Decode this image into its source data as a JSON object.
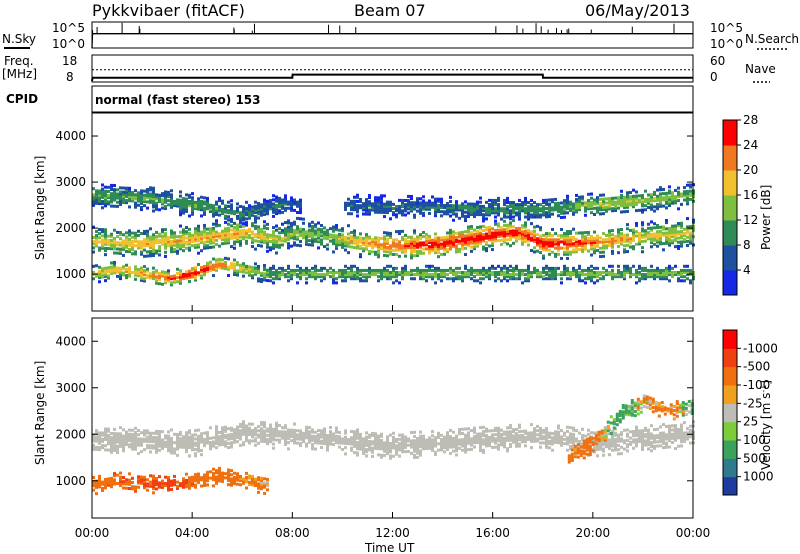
{
  "header": {
    "radar_title": "Pykkvibaer (fitACF)",
    "beam": "Beam 07",
    "date": "06/May/2013"
  },
  "info_panels": {
    "nsky_label": "N.Sky",
    "nsearch_label": "N.Search",
    "freq_label": "Freq.",
    "freq_unit": "[MHz]",
    "nave_label": "Nave",
    "cpid_label": "CPID",
    "cpid_text": "normal (fast stereo) 153",
    "noise_ticks_left": [
      "10^5",
      "10^0"
    ],
    "noise_ticks_right": [
      "10^5",
      "10^0"
    ],
    "freq_ticks_left": [
      "18",
      "8"
    ],
    "nave_ticks_right": [
      "60",
      "0"
    ]
  },
  "axes": {
    "ylabel": "Slant Range [km]",
    "xlabel": "Time UT",
    "x_ticks": [
      "00:00",
      "04:00",
      "08:00",
      "12:00",
      "16:00",
      "20:00",
      "00:00"
    ],
    "y_ticks": [
      "1000",
      "2000",
      "3000",
      "4000"
    ]
  },
  "power_colorbar": {
    "label": "Power [dB]",
    "ticks": [
      "4",
      "8",
      "12",
      "16",
      "20",
      "24",
      "28"
    ],
    "colors": [
      "#1428e6",
      "#1e50a0",
      "#2e8b57",
      "#7fbf3f",
      "#f0c030",
      "#f07820",
      "#ff0000"
    ]
  },
  "velocity_colorbar": {
    "label": "Velocity [m s",
    "label_sup": "-1",
    "label_end": "]",
    "ticks": [
      "1000",
      "500",
      "100",
      "25",
      "-25",
      "-100",
      "-500",
      "-1000"
    ],
    "colors": [
      "#1e3ca0",
      "#2f7a8c",
      "#3aa25a",
      "#7ccc3c",
      "#bdbdb5",
      "#f0a020",
      "#f07010",
      "#f04010",
      "#ff0000"
    ]
  },
  "chart_data": [
    {
      "type": "line",
      "title": "N.Sky / N.Search",
      "x_range_hours": [
        0,
        24
      ],
      "y_scale": "log",
      "ylim": [
        1,
        100000
      ],
      "series": [
        {
          "name": "N.Sky",
          "x": [
            0,
            0.02,
            24
          ],
          "y": [
            1,
            30000,
            30000
          ]
        }
      ]
    },
    {
      "type": "line",
      "title": "Freq. / Nave",
      "x_range_hours": [
        0,
        24
      ],
      "series": [
        {
          "name": "Freq. [MHz]",
          "x": [
            0,
            0.02,
            8,
            8.01,
            18,
            18.01,
            24
          ],
          "y": [
            8,
            10,
            10,
            12,
            12,
            10,
            10
          ]
        },
        {
          "name": "Nave",
          "x": [
            0,
            24
          ],
          "y": [
            42,
            42
          ]
        }
      ]
    },
    {
      "type": "heatmap",
      "title": "Power [dB]",
      "x_range_hours": [
        0,
        24
      ],
      "ylim_km": [
        200,
        4500
      ],
      "x_hours": [
        0,
        1,
        2,
        3,
        4,
        5,
        6,
        7,
        8,
        9,
        10,
        11,
        12,
        13,
        14,
        15,
        16,
        17,
        18,
        19,
        20,
        21,
        22,
        23,
        24
      ],
      "features": [
        {
          "desc": "main band",
          "x": [
            0,
            2,
            4,
            6,
            7.5,
            8,
            9.5,
            10.5,
            12,
            14,
            16,
            17,
            18,
            19,
            20.5,
            22,
            24
          ],
          "y_center_km": [
            1700,
            1650,
            1750,
            1900,
            1750,
            1900,
            1800,
            1700,
            1600,
            1650,
            1850,
            1900,
            1650,
            1650,
            1700,
            1800,
            1900
          ],
          "peak_db": [
            18,
            20,
            20,
            20,
            16,
            14,
            14,
            20,
            24,
            28,
            28,
            26,
            28,
            26,
            22,
            18,
            18
          ]
        },
        {
          "desc": "upper band",
          "x": [
            0,
            2,
            4,
            6,
            7.5,
            8,
            16,
            18,
            20,
            22,
            24
          ],
          "y_center_km": [
            2700,
            2650,
            2500,
            2300,
            2500,
            2500,
            2400,
            2400,
            2500,
            2600,
            2700
          ],
          "peak_db": [
            12,
            12,
            12,
            10,
            8,
            6,
            10,
            10,
            16,
            16,
            14
          ]
        },
        {
          "desc": "near-range echoes",
          "x": [
            0,
            1,
            2,
            3,
            4,
            5,
            6,
            7
          ],
          "y_center_km": [
            1000,
            1100,
            1000,
            900,
            1000,
            1200,
            1100,
            1000
          ],
          "peak_db": [
            18,
            20,
            22,
            26,
            28,
            24,
            18,
            14
          ]
        }
      ]
    },
    {
      "type": "heatmap",
      "title": "Velocity [m s-1]",
      "x_range_hours": [
        0,
        24
      ],
      "ylim_km": [
        200,
        4500
      ],
      "x_hours": [
        0,
        2,
        4,
        6,
        8,
        10,
        12,
        14,
        16,
        18,
        20,
        22,
        24
      ],
      "features": [
        {
          "desc": "ground scatter band",
          "x": [
            0,
            2,
            4,
            6,
            8,
            10,
            12,
            14,
            16,
            18,
            20,
            22,
            24
          ],
          "y_center_km": [
            1900,
            1850,
            1800,
            2000,
            1950,
            1850,
            1750,
            1800,
            1900,
            1950,
            1800,
            1900,
            2000
          ],
          "velocity": [
            0,
            0,
            0,
            0,
            0,
            0,
            0,
            0,
            0,
            0,
            0,
            0,
            0
          ]
        },
        {
          "desc": "near-range flow",
          "x": [
            0,
            1,
            2,
            3,
            4,
            5,
            6,
            7
          ],
          "y_center_km": [
            900,
            1000,
            950,
            900,
            1000,
            1100,
            1000,
            900
          ],
          "velocity": [
            -300,
            -400,
            -500,
            -600,
            -400,
            -300,
            -200,
            -100
          ]
        },
        {
          "desc": "late-day flow",
          "x": [
            19,
            20,
            21,
            22,
            23,
            24
          ],
          "y_center_km": [
            1500,
            1800,
            2400,
            2700,
            2500,
            2600
          ],
          "velocity": [
            -200,
            -300,
            300,
            -100,
            -200,
            200
          ]
        }
      ]
    }
  ]
}
